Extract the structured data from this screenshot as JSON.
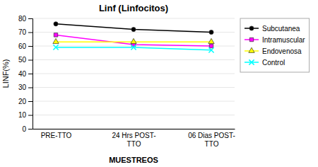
{
  "chart_data": {
    "type": "line",
    "title": "Linf (Linfocitos)",
    "xlabel": "MUESTREOS",
    "ylabel": "LINF(%)",
    "categories": [
      "PRE-TTO",
      "24 Hrs POST-\nTTO",
      "06 Dias POST-\nTTO"
    ],
    "series": [
      {
        "name": "Subcutanea",
        "color": "#000000",
        "marker": "circle",
        "line_style": "solid",
        "values": [
          76,
          72,
          70
        ]
      },
      {
        "name": "Intramuscular",
        "color": "#ff00ff",
        "marker": "square",
        "line_style": "solid",
        "values": [
          68,
          61,
          60
        ]
      },
      {
        "name": "Endovenosa",
        "color": "#ffff00",
        "marker": "triangle",
        "line_style": "solid",
        "values": [
          63,
          63,
          63
        ]
      },
      {
        "name": "Control",
        "color": "#00ffff",
        "marker": "x",
        "line_style": "solid",
        "values": [
          59,
          59,
          57
        ]
      }
    ],
    "ylim": [
      0,
      80
    ],
    "yticks": [
      0,
      10,
      20,
      30,
      40,
      50,
      60,
      70,
      80
    ],
    "grid": true,
    "legend": "right"
  }
}
